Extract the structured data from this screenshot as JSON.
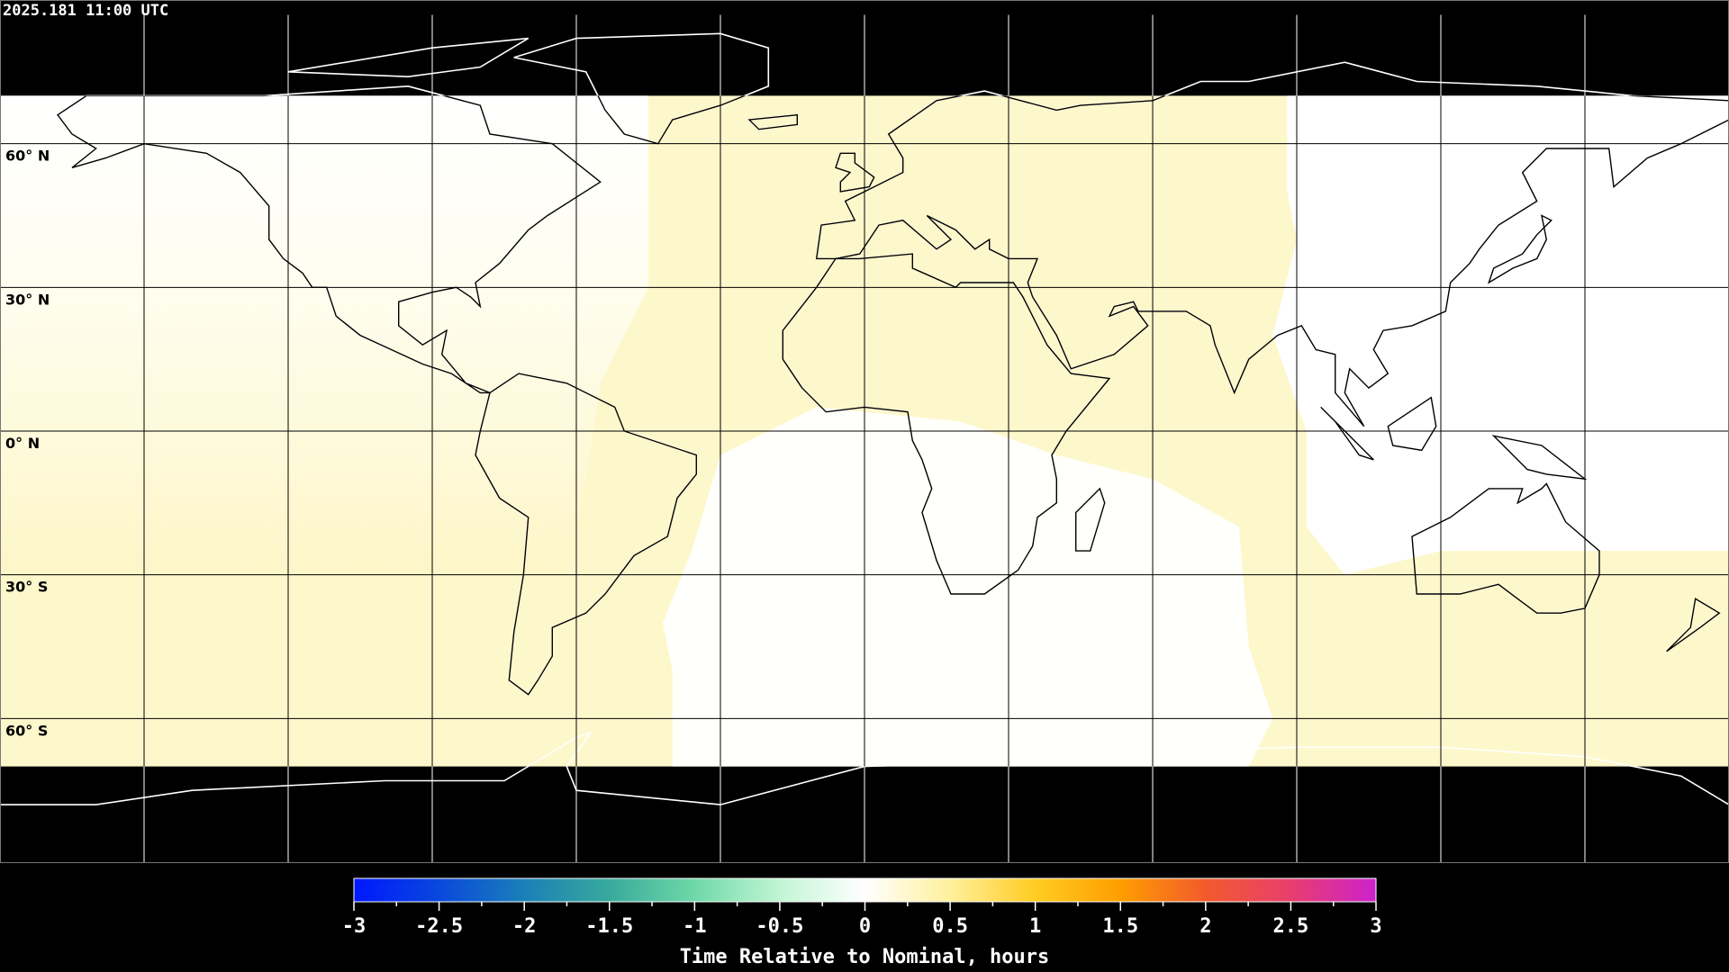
{
  "header": {
    "timestamp": "2025.181 11:00 UTC"
  },
  "map": {
    "projection": "equirectangular",
    "lon_range": [
      -180,
      180
    ],
    "lat_range": [
      -90,
      90
    ],
    "graticule_step_deg": 30,
    "lat_labels": [
      "60° N",
      "30° N",
      "0° N",
      "30° S",
      "60° S"
    ],
    "coverage_lat_range": [
      -70,
      70
    ],
    "colors": {
      "background": "#000000",
      "coast_on_dark": "#ffffff",
      "coast_on_data": "#000000",
      "grid": "#000000",
      "near_zero": "#ffffff",
      "slight_positive": "#fdf7cc"
    }
  },
  "colorbar": {
    "min": -3,
    "max": 3,
    "tick_labels": [
      "-3",
      "-2.5",
      "-2",
      "-1.5",
      "-1",
      "-0.5",
      "0",
      "0.5",
      "1",
      "1.5",
      "2",
      "2.5",
      "3"
    ],
    "title": "Time Relative to Nominal, hours",
    "stops": [
      {
        "v": -3,
        "c": "#0018ff"
      },
      {
        "v": -2.5,
        "c": "#0a48dc"
      },
      {
        "v": -2,
        "c": "#1a80b8"
      },
      {
        "v": -1.5,
        "c": "#38aa9c"
      },
      {
        "v": -1,
        "c": "#6fd8a8"
      },
      {
        "v": -0.5,
        "c": "#c2f5d4"
      },
      {
        "v": 0,
        "c": "#ffffff"
      },
      {
        "v": 0.5,
        "c": "#fff09c"
      },
      {
        "v": 1,
        "c": "#ffcc22"
      },
      {
        "v": 1.5,
        "c": "#ff9e00"
      },
      {
        "v": 2,
        "c": "#f25a2c"
      },
      {
        "v": 2.5,
        "c": "#e83e6e"
      },
      {
        "v": 3,
        "c": "#cc22cc"
      }
    ]
  }
}
